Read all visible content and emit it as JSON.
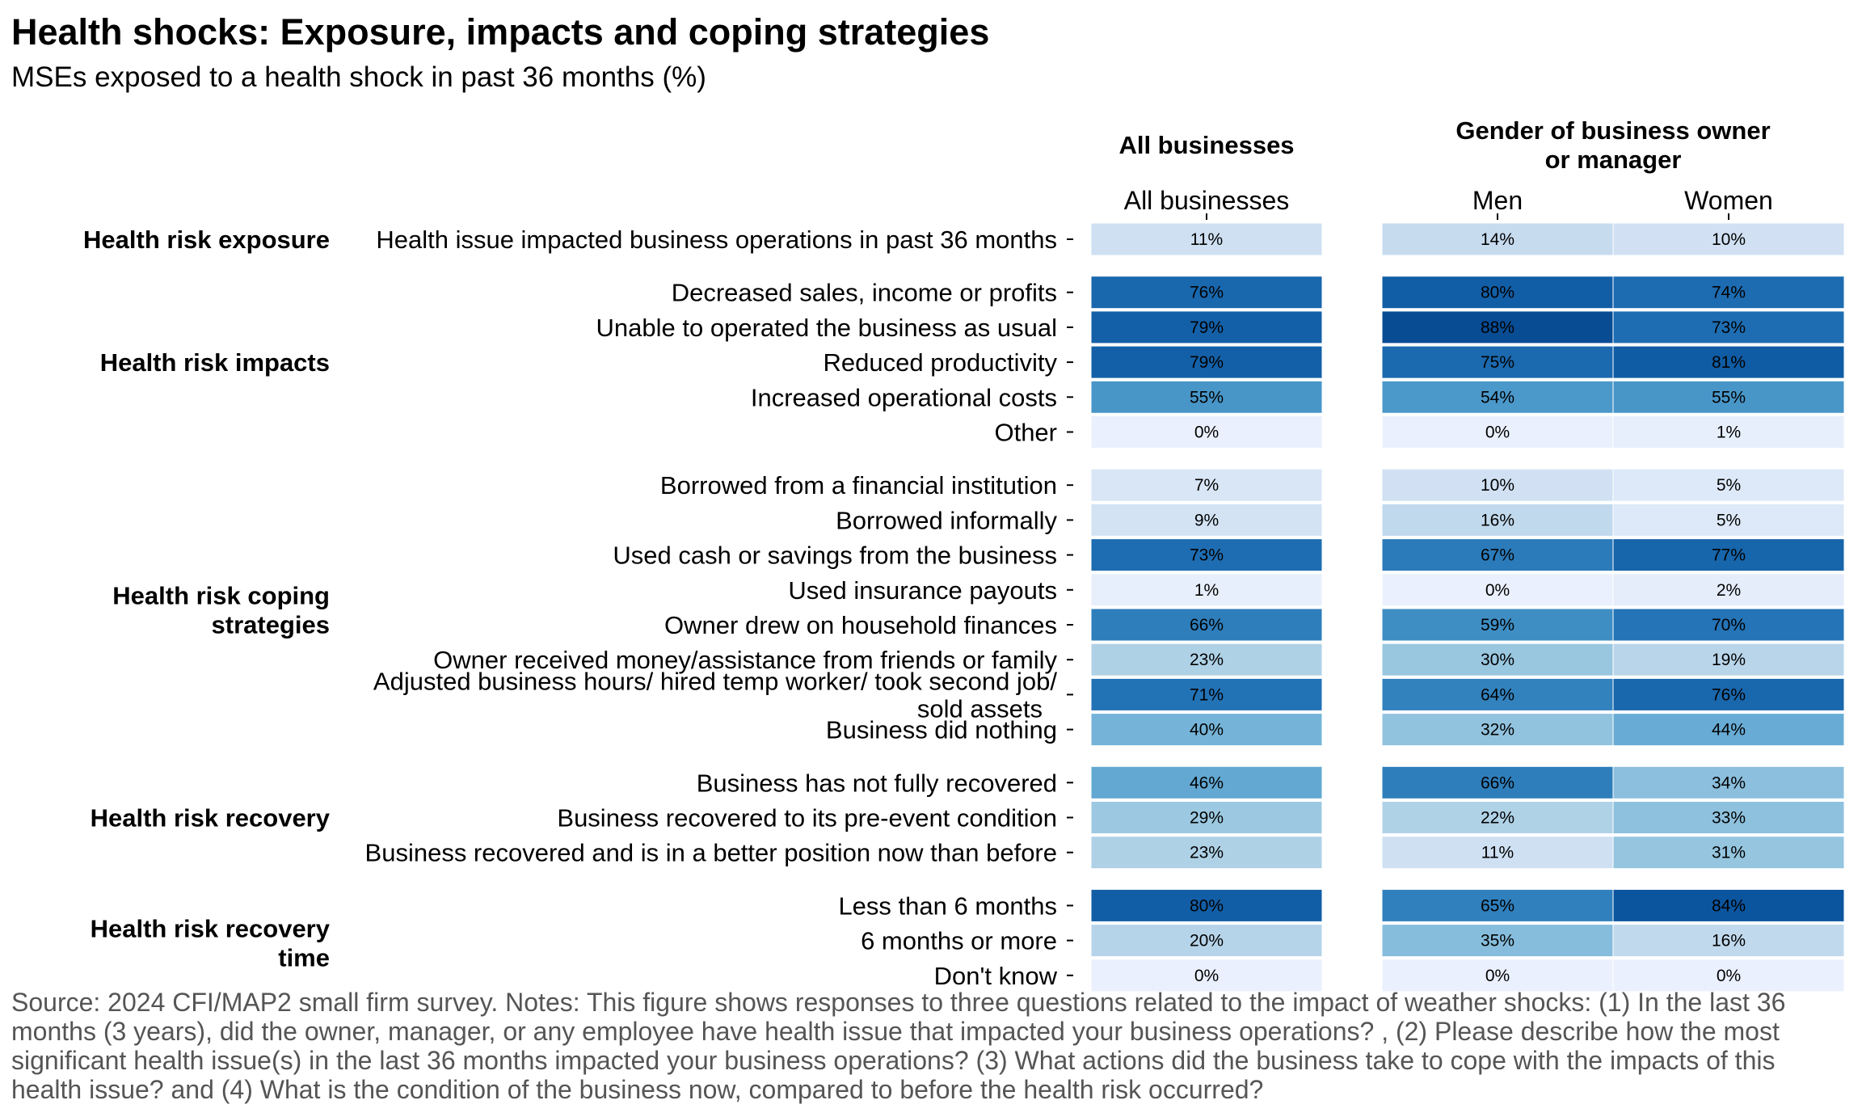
{
  "title": "Health shocks: Exposure, impacts and coping strategies",
  "subtitle": "MSEs exposed to a health shock in past 36 months (%)",
  "source": "Source: 2024 CFI/MAP2 small firm survey. Notes: This figure shows responses to three questions related to the impact of weather shocks: (1) In the last 36 months (3 years), did the owner, manager, or any employee have health issue that impacted your business operations? , (2) Please describe how the most significant health issue(s) in the last 36 months impacted your business operations? (3) What actions did the business take to cope with the impacts of this health issue? and (4) What is the condition of the business now, compared to before the health risk occurred?",
  "chart_data": {
    "type": "heatmap",
    "unit": "%",
    "color_scale": {
      "low": "#eaf0fd",
      "high": "#08306b",
      "domain": [
        0,
        100
      ]
    },
    "panels": [
      {
        "title": "All businesses",
        "columns": [
          "All businesses"
        ]
      },
      {
        "title": "Gender of business owner or manager",
        "columns": [
          "Men",
          "Women"
        ]
      }
    ],
    "groups": [
      {
        "label": "Health risk exposure",
        "rows": [
          {
            "label": "Health issue impacted business operations in past 36 months",
            "values": [
              11,
              14,
              10
            ]
          }
        ]
      },
      {
        "label": "Health risk impacts",
        "rows": [
          {
            "label": "Decreased sales, income or profits",
            "values": [
              76,
              80,
              74
            ]
          },
          {
            "label": "Unable to operated the business as usual",
            "values": [
              79,
              88,
              73
            ]
          },
          {
            "label": "Reduced productivity",
            "values": [
              79,
              75,
              81
            ]
          },
          {
            "label": "Increased operational costs",
            "values": [
              55,
              54,
              55
            ]
          },
          {
            "label": "Other",
            "values": [
              0,
              0,
              1
            ]
          }
        ]
      },
      {
        "label": "Health risk coping strategies",
        "rows": [
          {
            "label": "Borrowed from a financial institution",
            "values": [
              7,
              10,
              5
            ]
          },
          {
            "label": "Borrowed informally",
            "values": [
              9,
              16,
              5
            ]
          },
          {
            "label": "Used cash or savings from the business",
            "values": [
              73,
              67,
              77
            ]
          },
          {
            "label": "Used insurance payouts",
            "values": [
              1,
              0,
              2
            ]
          },
          {
            "label": "Owner drew on household finances",
            "values": [
              66,
              59,
              70
            ]
          },
          {
            "label": "Owner received money/assistance from friends or family",
            "values": [
              23,
              30,
              19
            ]
          },
          {
            "label": "Adjusted business hours/ hired temp worker/ took second job/ sold assets",
            "values": [
              71,
              64,
              76
            ]
          },
          {
            "label": "Business did nothing",
            "values": [
              40,
              32,
              44
            ]
          }
        ]
      },
      {
        "label": "Health risk recovery",
        "rows": [
          {
            "label": "Business has not fully recovered",
            "values": [
              46,
              66,
              34
            ]
          },
          {
            "label": "Business recovered to its pre-event condition",
            "values": [
              29,
              22,
              33
            ]
          },
          {
            "label": "Business recovered and is in a better position now than before",
            "values": [
              23,
              11,
              31
            ]
          }
        ]
      },
      {
        "label": "Health risk recovery time",
        "rows": [
          {
            "label": "Less than 6 months",
            "values": [
              80,
              65,
              84
            ]
          },
          {
            "label": "6 months or more",
            "values": [
              20,
              35,
              16
            ]
          },
          {
            "label": "Don't know",
            "values": [
              0,
              0,
              0
            ]
          }
        ]
      }
    ]
  }
}
